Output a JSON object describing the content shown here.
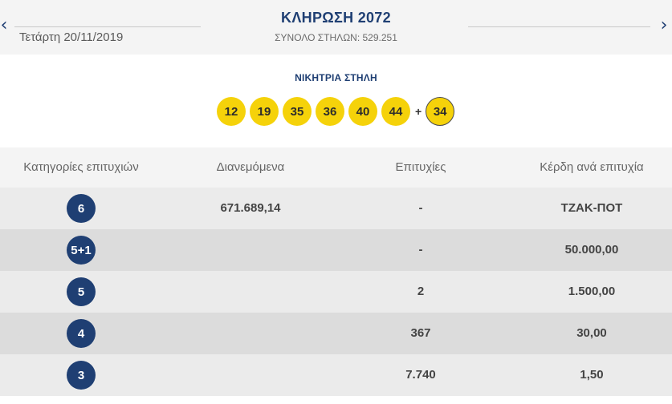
{
  "header": {
    "prev_arrow": "‹",
    "next_arrow": "›",
    "date": "Τετάρτη 20/11/2019",
    "title": "ΚΛΗΡΩΣΗ 2072",
    "total_columns": "ΣΥΝΟΛΟ ΣΤΗΛΩΝ: 529.251"
  },
  "winning": {
    "title": "ΝΙΚΗΤΡΙΑ ΣΤΗΛΗ",
    "numbers": [
      "12",
      "19",
      "35",
      "36",
      "40",
      "44"
    ],
    "plus": "+",
    "bonus": "34"
  },
  "table": {
    "headers": [
      "Κατηγορίες επιτυχιών",
      "Διανεμόμενα",
      "Επιτυχίες",
      "Κέρδη ανά επιτυχία"
    ],
    "rows": [
      {
        "category": "6",
        "distributed": "671.689,14",
        "winners": "-",
        "prize": "ΤΖΑΚ-ΠΟΤ"
      },
      {
        "category": "5+1",
        "distributed": "",
        "winners": "-",
        "prize": "50.000,00"
      },
      {
        "category": "5",
        "distributed": "",
        "winners": "2",
        "prize": "1.500,00"
      },
      {
        "category": "4",
        "distributed": "",
        "winners": "367",
        "prize": "30,00"
      },
      {
        "category": "3",
        "distributed": "",
        "winners": "7.740",
        "prize": "1,50"
      }
    ]
  },
  "colors": {
    "brand_blue": "#1f3f73",
    "ball_yellow": "#f5d20a"
  }
}
